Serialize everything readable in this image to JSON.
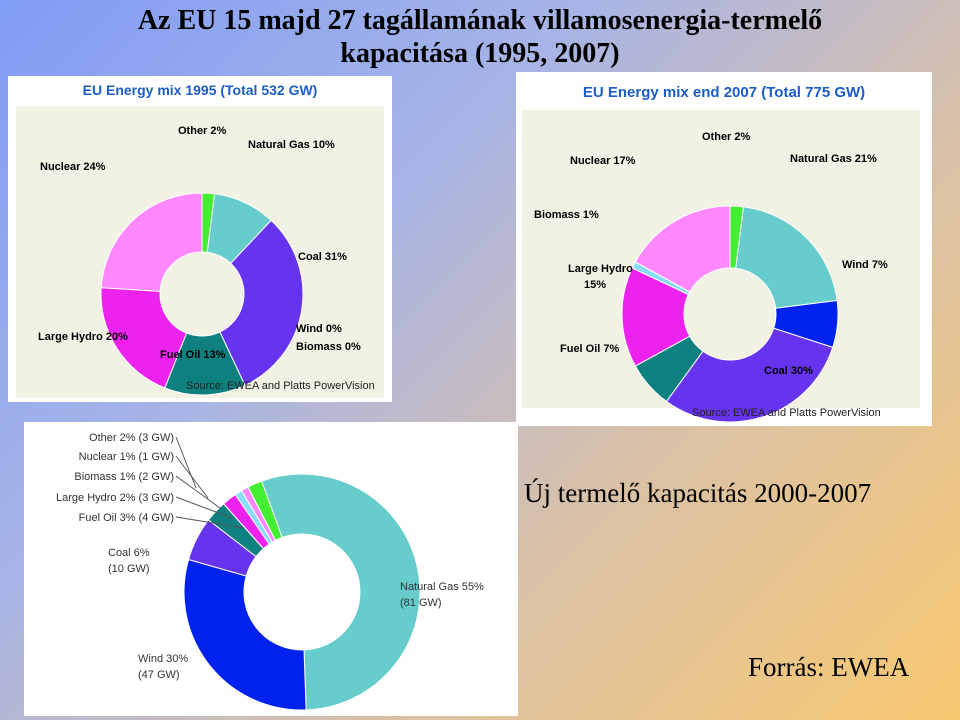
{
  "slide": {
    "title_line1": "Az EU 15 majd 27 tagállamának villamosenergia-termelő",
    "title_line2": "kapacitása (1995, 2007)",
    "heading": "Új termelő kapacitás 2000-2007",
    "source": "Forrás: EWEA"
  },
  "colors": {
    "other": "#44ee33",
    "natural_gas": "#66cccc",
    "coal": "#6633ee",
    "fuel_oil": "#0f8080",
    "large_hydro": "#ee22ee",
    "nuclear": "#ff88ff",
    "biomass": "#88ddff",
    "wind": "#0022ee"
  },
  "chart_data": [
    {
      "type": "donut",
      "title": "EU Energy mix 1995 (Total 532 GW)",
      "source_note": "Source: EWEA and Platts PowerVision",
      "series": [
        {
          "name": "Other",
          "label": "Other 2%",
          "value": 2
        },
        {
          "name": "Natural Gas",
          "label": "Natural Gas 10%",
          "value": 10
        },
        {
          "name": "Coal",
          "label": "Coal 31%",
          "value": 31
        },
        {
          "name": "Wind",
          "label": "Wind 0%",
          "value": 0
        },
        {
          "name": "Biomass",
          "label": "Biomass 0%",
          "value": 0
        },
        {
          "name": "Fuel Oil",
          "label": "Fuel Oil 13%",
          "value": 13
        },
        {
          "name": "Large Hydro",
          "label": "Large Hydro 20%",
          "value": 20
        },
        {
          "name": "Nuclear",
          "label": "Nuclear 24%",
          "value": 24
        }
      ]
    },
    {
      "type": "donut",
      "title": "EU Energy mix end 2007 (Total 775 GW)",
      "source_note": "Source: EWEA and Platts PowerVision",
      "series": [
        {
          "name": "Other",
          "label": "Other 2%",
          "value": 2
        },
        {
          "name": "Natural Gas",
          "label": "Natural Gas 21%",
          "value": 21
        },
        {
          "name": "Wind",
          "label": "Wind 7%",
          "value": 7
        },
        {
          "name": "Coal",
          "label": "Coal 30%",
          "value": 30
        },
        {
          "name": "Fuel Oil",
          "label": "Fuel Oil 7%",
          "value": 7
        },
        {
          "name": "Large Hydro",
          "label": "Large Hydro 15%",
          "value": 15
        },
        {
          "name": "Biomass",
          "label": "Biomass 1%",
          "value": 1
        },
        {
          "name": "Nuclear",
          "label": "Nuclear 17%",
          "value": 17
        }
      ]
    },
    {
      "type": "donut",
      "series": [
        {
          "name": "Natural Gas",
          "label": "Natural Gas 55%",
          "sublabel": "(81 GW)",
          "value": 55,
          "gw": 81
        },
        {
          "name": "Wind",
          "label": "Wind 30%",
          "sublabel": "(47 GW)",
          "value": 30,
          "gw": 47
        },
        {
          "name": "Coal",
          "label": "Coal 6%",
          "sublabel": "(10 GW)",
          "value": 6,
          "gw": 10
        },
        {
          "name": "Fuel Oil",
          "label": "Fuel Oil 3% (4 GW)",
          "value": 3,
          "gw": 4
        },
        {
          "name": "Large Hydro",
          "label": "Large Hydro 2% (3 GW)",
          "value": 2,
          "gw": 3
        },
        {
          "name": "Biomass",
          "label": "Biomass 1% (2 GW)",
          "value": 1,
          "gw": 2
        },
        {
          "name": "Nuclear",
          "label": "Nuclear 1% (1 GW)",
          "value": 1,
          "gw": 1
        },
        {
          "name": "Other",
          "label": "Other 2% (3 GW)",
          "value": 2,
          "gw": 3
        }
      ]
    }
  ]
}
